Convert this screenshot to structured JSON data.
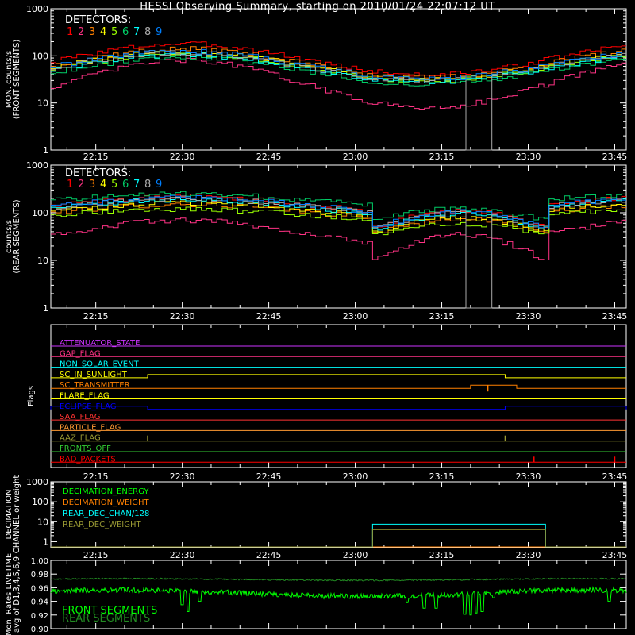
{
  "title": "HESSI Observing Summary, starting on 2010/01/24 22:07:12 UT",
  "colors": {
    "det": [
      "#ff0000",
      "#ff3385",
      "#ff8000",
      "#ffff00",
      "#99ff00",
      "#00cc66",
      "#00ffff",
      "#aaaaaa",
      "#0080ff"
    ],
    "fill": "#000000",
    "axes": "#ffffff"
  },
  "time_axis": {
    "start": "2010-01-24 22:07:12",
    "end": "2010-01-24 23:47:00",
    "ticks": [
      "22:15",
      "22:30",
      "22:45",
      "23:00",
      "23:15",
      "23:30",
      "23:45"
    ]
  },
  "chart_data": [
    {
      "type": "line",
      "name": "front",
      "ylabel": [
        "MON. counts/s",
        "(FRONT SEGMENTS)"
      ],
      "yscale": "log",
      "ylim": [
        1,
        1000
      ],
      "ytick_labels": [
        "1",
        "10",
        "100",
        "1000"
      ],
      "legend_title": "DETECTORS:",
      "legend_labels": [
        "1",
        "2",
        "3",
        "4",
        "5",
        "6",
        "7",
        "8",
        "9"
      ],
      "series_profile": {
        "peaks": [
          "22:30",
          "23:12"
        ],
        "det_peak": [
          180,
          80,
          140,
          120,
          110,
          95,
          105,
          115,
          125
        ],
        "det_base": [
          40,
          8,
          35,
          32,
          30,
          25,
          28,
          30,
          33
        ],
        "dropout_detector": "8",
        "dropout": [
          "23:19",
          "23:23"
        ]
      }
    },
    {
      "type": "line",
      "name": "rear",
      "ylabel": [
        "counts/s",
        "(REAR SEGMENTS)"
      ],
      "yscale": "log",
      "ylim": [
        1,
        1000
      ],
      "ytick_labels": [
        "1",
        "10",
        "100",
        "1000"
      ],
      "legend_title": "DETECTORS:",
      "legend_labels": [
        "1",
        "2",
        "3",
        "4",
        "5",
        "6",
        "7",
        "8",
        "9"
      ],
      "series_profile": {
        "peak": "22:30",
        "det_peak": [
          220,
          70,
          150,
          160,
          120,
          250,
          190,
          200,
          210
        ],
        "det_base": [
          100,
          20,
          75,
          80,
          70,
          140,
          90,
          95,
          100
        ],
        "eclipse_drop": [
          "23:03",
          "23:33"
        ],
        "dropout_detector": "8",
        "dropout": [
          "23:19",
          "23:23"
        ]
      }
    },
    {
      "type": "flags",
      "name": "flags",
      "ylabel": "Flags",
      "flags": [
        {
          "label": "ATTENUATOR_STATE",
          "color": "#cc33ff"
        },
        {
          "label": "GAP_FLAG",
          "color": "#ff3385"
        },
        {
          "label": "NON_SOLAR_EVENT",
          "color": "#00ffff"
        },
        {
          "label": "SC_IN_SUNLIGHT",
          "color": "#ffff00",
          "high": [
            [
              "22:24",
              "23:26"
            ]
          ]
        },
        {
          "label": "SC_TRANSMITTER",
          "color": "#ff8000",
          "high": [
            [
              "23:20",
              "23:28"
            ]
          ],
          "dip": [
            "23:23"
          ]
        },
        {
          "label": "FLARE_FLAG",
          "color": "#ffff00"
        },
        {
          "label": "ECLIPSE_FLAG",
          "color": "#0000ff",
          "high": [
            [
              "22:07",
              "22:24"
            ],
            [
              "23:26",
              "23:47"
            ]
          ]
        },
        {
          "label": "SAA_FLAG",
          "color": "#ff3333"
        },
        {
          "label": "PARTICLE_FLAG",
          "color": "#ff9933"
        },
        {
          "label": "AAZ_FLAG",
          "color": "#999933",
          "spikes": [
            "22:24",
            "23:26"
          ]
        },
        {
          "label": "FRONTS_OFF",
          "color": "#33cc33"
        },
        {
          "label": "BAD_PACKETS",
          "color": "#ff0000",
          "spikes": [
            "23:31",
            "23:45"
          ]
        }
      ]
    },
    {
      "type": "line",
      "name": "decimation",
      "ylabel": [
        "DECIMATION",
        "CHANNEL or weight"
      ],
      "yscale": "log",
      "ylim": [
        0.5,
        1000
      ],
      "ytick_labels": [
        "1",
        "10",
        "100",
        "1000"
      ],
      "series": [
        {
          "name": "DECIMATION_ENERGY",
          "color": "#00ff00",
          "value": 0
        },
        {
          "name": "DECIMATION_WEIGHT",
          "color": "#ff8000",
          "value": 1
        },
        {
          "name": "REAR_DEC_CHAN/128",
          "color": "#00ffff",
          "value": 7.5,
          "on": [
            "23:03",
            "23:33"
          ]
        },
        {
          "name": "REAR_DEC_WEIGHT",
          "color": "#999933",
          "value": 4,
          "on": [
            "23:03",
            "23:33"
          ]
        }
      ]
    },
    {
      "type": "line",
      "name": "livetime",
      "ylabel": [
        "Mon. Rates LIVETIME",
        "avg of D1,3,4,5,6,9"
      ],
      "ylim": [
        0.9,
        1.0
      ],
      "ytick_labels": [
        "0.90",
        "0.92",
        "0.94",
        "0.96",
        "0.98",
        "1.00"
      ],
      "series": [
        {
          "name": "FRONT SEGMENTS",
          "color": "#00ff00",
          "level": 0.952
        },
        {
          "name": "REAR SEGMENTS",
          "color": "#228B22",
          "level": 0.972
        }
      ],
      "dips": [
        {
          "t": "22:30",
          "v": 0.935
        },
        {
          "t": "22:31",
          "v": 0.925
        },
        {
          "t": "22:33",
          "v": 0.94
        },
        {
          "t": "23:09",
          "v": 0.938
        },
        {
          "t": "23:12",
          "v": 0.93
        },
        {
          "t": "23:14",
          "v": 0.93
        },
        {
          "t": "23:19",
          "v": 0.921
        },
        {
          "t": "23:20",
          "v": 0.92
        },
        {
          "t": "23:21",
          "v": 0.923
        },
        {
          "t": "23:22",
          "v": 0.925
        },
        {
          "t": "23:24",
          "v": 0.945
        },
        {
          "t": "23:44",
          "v": 0.94
        }
      ]
    }
  ]
}
